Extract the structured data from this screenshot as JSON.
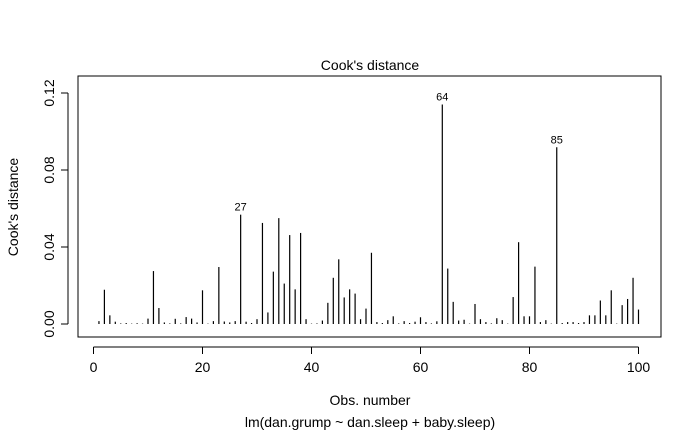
{
  "chart_data": {
    "type": "bar",
    "title": "Cook's distance",
    "xlabel": "Obs. number",
    "ylabel": "Cook's distance",
    "subtitle": "lm(dan.grump ~ dan.sleep + baby.sleep)",
    "xlim": [
      0,
      101
    ],
    "ylim": [
      0,
      0.125
    ],
    "xticks": [
      0,
      20,
      40,
      60,
      80,
      100
    ],
    "yticks": [
      0.0,
      0.04,
      0.08,
      0.12
    ],
    "xtick_labels": [
      "0",
      "20",
      "40",
      "60",
      "80",
      "100"
    ],
    "ytick_labels": [
      "0.00",
      "0.04",
      "0.08",
      "0.12"
    ],
    "x": [
      1,
      2,
      3,
      4,
      5,
      6,
      7,
      8,
      9,
      10,
      11,
      12,
      13,
      14,
      15,
      16,
      17,
      18,
      19,
      20,
      21,
      22,
      23,
      24,
      25,
      26,
      27,
      28,
      29,
      30,
      31,
      32,
      33,
      34,
      35,
      36,
      37,
      38,
      39,
      40,
      41,
      42,
      43,
      44,
      45,
      46,
      47,
      48,
      49,
      50,
      51,
      52,
      53,
      54,
      55,
      56,
      57,
      58,
      59,
      60,
      61,
      62,
      63,
      64,
      65,
      66,
      67,
      68,
      69,
      70,
      71,
      72,
      73,
      74,
      75,
      76,
      77,
      78,
      79,
      80,
      81,
      82,
      83,
      84,
      85,
      86,
      87,
      88,
      89,
      90,
      91,
      92,
      93,
      94,
      95,
      96,
      97,
      98,
      99,
      100
    ],
    "values": [
      0.0015,
      0.0178,
      0.0045,
      0.0012,
      0.0003,
      0.0005,
      0.0002,
      0.0004,
      0.0002,
      0.0028,
      0.0275,
      0.0083,
      0.0008,
      0.0003,
      0.0027,
      0.0003,
      0.0036,
      0.0028,
      0.0008,
      0.0175,
      0.0002,
      0.0015,
      0.0296,
      0.0013,
      0.0008,
      0.0015,
      0.0568,
      0.0012,
      0.0005,
      0.0025,
      0.0525,
      0.006,
      0.0272,
      0.055,
      0.021,
      0.0462,
      0.018,
      0.0473,
      0.0025,
      0.0002,
      0.0003,
      0.0018,
      0.011,
      0.024,
      0.0336,
      0.0138,
      0.018,
      0.0158,
      0.0025,
      0.008,
      0.037,
      0.001,
      0.0005,
      0.002,
      0.004,
      0.0003,
      0.0015,
      0.0005,
      0.0012,
      0.0035,
      0.001,
      0.0003,
      0.0014,
      0.114,
      0.0288,
      0.0115,
      0.0018,
      0.0022,
      0.0002,
      0.0104,
      0.0025,
      0.001,
      0.0003,
      0.003,
      0.002,
      0.0002,
      0.014,
      0.0425,
      0.004,
      0.004,
      0.0298,
      0.001,
      0.002,
      0.0002,
      0.0918,
      0.0005,
      0.001,
      0.001,
      0.0005,
      0.001,
      0.0045,
      0.0045,
      0.0122,
      0.0045,
      0.0175,
      0.0002,
      0.0098,
      0.013,
      0.024,
      0.0075
    ],
    "annotations": [
      {
        "x": 27,
        "label": "27"
      },
      {
        "x": 64,
        "label": "64"
      },
      {
        "x": 85,
        "label": "85"
      }
    ]
  }
}
